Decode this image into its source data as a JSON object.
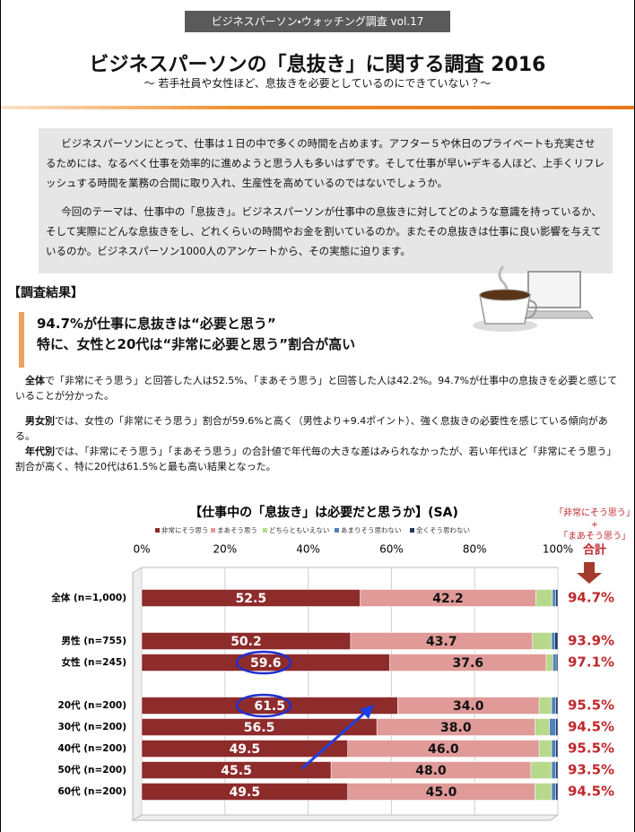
{
  "header": {
    "tag": "ビジネスパーソン・ウォッチング調査 vol.17",
    "title": "ビジネスパーソンの「息抜き」に関する調査 2016",
    "subtitle": "～ 若手社員や女性ほど、息抜きを必要としているのにできていない？～"
  },
  "intro": {
    "paragraphs": [
      "ビジネスパーソンにとって、仕事は１日の中で多くの時間を占めます。アフター５や休日のプライベートも充実させるためには、なるべく仕事を効率的に進めようと思う人も多いはずです。そして仕事が早い・デキる人ほど、上手くリフレッシュする時間を業務の合間に取り入れ、生産性を高めているのではないでしょうか。",
      "今回のテーマは、仕事中の「息抜き」。ビジネスパーソンが仕事中の息抜きに対してどのような意識を持っているか、そして実際にどんな息抜きをし、どれくらいの時間やお金を割いているのか。またその息抜きは仕事に良い影響を与えているのか。ビジネスパーソン1000人のアンケートから、その実態に迫ります。"
    ]
  },
  "results": {
    "label": "【調査結果】",
    "headline": [
      "94.7%が仕事に息抜きは“必要と思う”",
      "特に、女性と20代は“非常に必要と思う”割合が高い"
    ],
    "paragraphs": [
      {
        "lead": "全体",
        "text": "で「非常にそう思う」と回答した人は52.5%、「まあそう思う」と回答した人は42.2%。94.7%が仕事中の息抜きを必要と感じていることが分かった。"
      },
      {
        "lead": "男女別",
        "text": "では、女性の「非常にそう思う」割合が59.6%と高く（男性より+9.4ポイント）、強く息抜きの必要性を感じている傾向がある。"
      },
      {
        "lead": "年代別",
        "text": "では、「非常にそう思う」「まあそう思う」の合計値で年代毎の大きな差はみられなかったが、若い年代ほど「非常にそう思う」割合が高く、特に20代は61.5%と最も高い結果となった。"
      }
    ]
  },
  "chart_data": {
    "type": "bar",
    "orientation": "horizontal",
    "stacked": true,
    "title": "【仕事中の「息抜き」は必要だと思うか】(SA)",
    "categories": [
      "全体 (n=1,000)",
      null,
      "男性 (n=755)",
      "女性 (n=245)",
      null,
      "20代 (n=200)",
      "30代 (n=200)",
      "40代 (n=200)",
      "50代 (n=200)",
      "60代 (n=200)"
    ],
    "series": [
      {
        "name": "非常にそう思う",
        "color": "#8e2b2b",
        "values": [
          52.5,
          null,
          50.2,
          59.6,
          null,
          61.5,
          56.5,
          49.5,
          45.5,
          49.5
        ],
        "value_labels": [
          "52.5",
          null,
          "50.2",
          "59.6",
          null,
          "61.5",
          "56.5",
          "49.5",
          "45.5",
          "49.5"
        ]
      },
      {
        "name": "まあそう思う",
        "color": "#e09a98",
        "values": [
          42.2,
          null,
          43.7,
          37.6,
          null,
          34.0,
          38.0,
          46.0,
          48.0,
          45.0
        ],
        "value_labels": [
          "42.2",
          null,
          "43.7",
          "37.6",
          null,
          "34.0",
          "38.0",
          "46.0",
          "48.0",
          "45.0"
        ]
      },
      {
        "name": "どちらともいえない",
        "color": "#b7d98c",
        "values": [
          4.0,
          null,
          4.6,
          1.6,
          null,
          3.0,
          3.5,
          3.0,
          5.0,
          4.0
        ]
      },
      {
        "name": "あまりそう思わない",
        "color": "#4f81bd",
        "values": [
          0.8,
          null,
          0.8,
          0.8,
          null,
          1.0,
          1.5,
          1.0,
          1.0,
          1.0
        ]
      },
      {
        "name": "全くそう思わない",
        "color": "#1f3864",
        "values": [
          0.5,
          null,
          0.7,
          0.4,
          null,
          0.5,
          0.5,
          0.5,
          0.5,
          0.5
        ]
      }
    ],
    "xlim": [
      0,
      100
    ],
    "xticks": [
      {
        "value": 0,
        "label": "0%"
      },
      {
        "value": 20,
        "label": "20%"
      },
      {
        "value": 40,
        "label": "40%"
      },
      {
        "value": 60,
        "label": "60%"
      },
      {
        "value": 80,
        "label": "80%"
      },
      {
        "value": 100,
        "label": "100%"
      }
    ],
    "grid": true,
    "totals": {
      "title": [
        "「非常にそう思う」",
        "+",
        "「まあそう思う」",
        "合計"
      ],
      "color": "#c0282d",
      "values": [
        94.7,
        null,
        93.9,
        97.1,
        null,
        95.5,
        94.5,
        95.5,
        93.5,
        94.5
      ],
      "value_labels": [
        "94.7%",
        null,
        "93.9%",
        "97.1%",
        null,
        "95.5%",
        "94.5%",
        "95.5%",
        "93.5%",
        "94.5%"
      ]
    }
  }
}
